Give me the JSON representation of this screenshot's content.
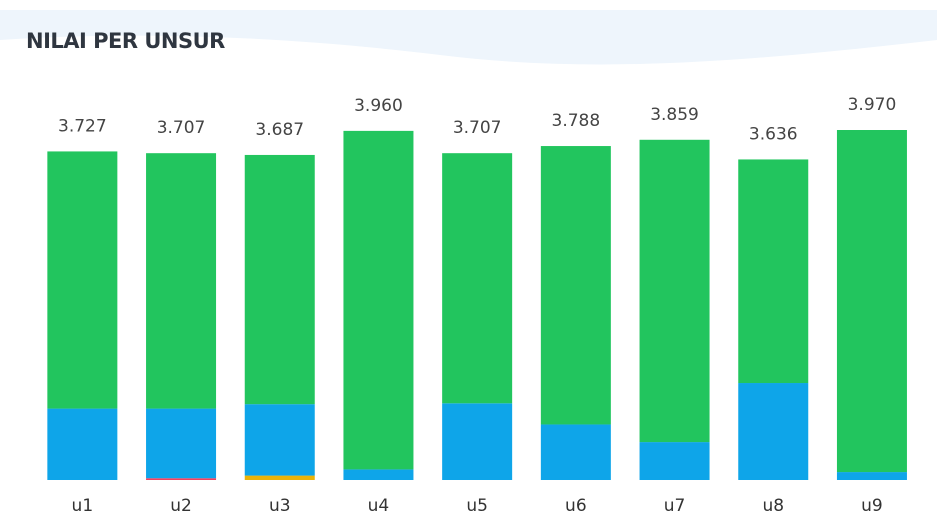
{
  "chart_data": {
    "type": "stacked_bar",
    "title": "NILAI PER UNSUR",
    "categories": [
      "u1",
      "u2",
      "u3",
      "u4",
      "u5",
      "u6",
      "u7",
      "u8",
      "u9"
    ],
    "totals": [
      3.727,
      3.707,
      3.687,
      3.96,
      3.707,
      3.788,
      3.859,
      3.636,
      3.97
    ],
    "total_labels": [
      "3.727",
      "3.707",
      "3.687",
      "3.960",
      "3.707",
      "3.788",
      "3.859",
      "3.636",
      "3.970"
    ],
    "series": [
      {
        "color": "#eab308",
        "values": [
          0,
          0,
          0.05,
          0,
          0,
          0,
          0,
          0,
          0
        ]
      },
      {
        "color": "#f43f5e",
        "values": [
          0,
          0.02,
          0,
          0,
          0,
          0,
          0,
          0,
          0
        ]
      },
      {
        "color": "#0ea5e9",
        "values": [
          0.81,
          0.79,
          0.81,
          0.12,
          0.87,
          0.63,
          0.43,
          1.1,
          0.09
        ]
      },
      {
        "color": "#22c55e",
        "values": [
          2.917,
          2.897,
          2.827,
          3.84,
          2.837,
          3.158,
          3.429,
          2.536,
          3.88
        ]
      }
    ]
  }
}
